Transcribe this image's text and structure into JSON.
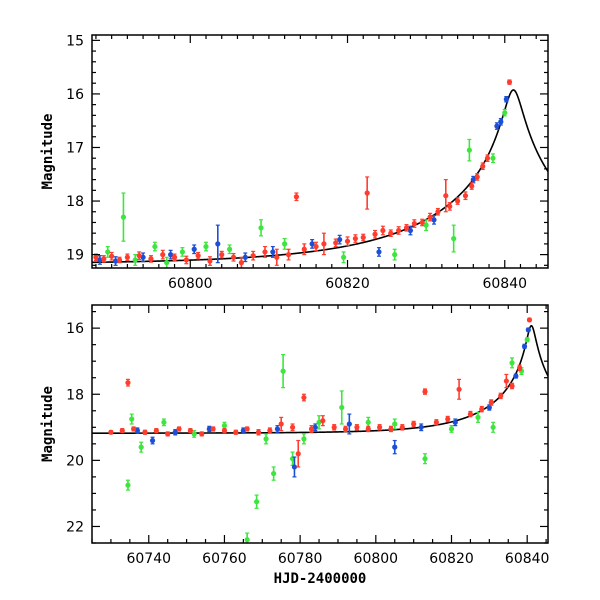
{
  "chart_data": [
    {
      "type": "scatter",
      "panel": "top",
      "ylabel": "Magnitude",
      "xlabel": "",
      "xlim": [
        60787.5,
        60845.5
      ],
      "ylim": [
        19.25,
        14.9
      ],
      "y_inverted": true,
      "xticks_major": [
        60800,
        60820,
        60840
      ],
      "yticks_major": [
        15,
        16,
        17,
        18,
        19
      ],
      "grid": false,
      "legend": "none",
      "series": [
        {
          "color": "#ff3d2e",
          "points": [
            {
              "x": 60788.0,
              "y": 19.05,
              "e": 0.06
            },
            {
              "x": 60789.0,
              "y": 19.08,
              "e": 0.06
            },
            {
              "x": 60790.0,
              "y": 19.03,
              "e": 0.07
            },
            {
              "x": 60791.0,
              "y": 19.1,
              "e": 0.05
            },
            {
              "x": 60792.0,
              "y": 19.05,
              "e": 0.06
            },
            {
              "x": 60793.5,
              "y": 19.02,
              "e": 0.07
            },
            {
              "x": 60795.0,
              "y": 19.08,
              "e": 0.06
            },
            {
              "x": 60796.5,
              "y": 19.0,
              "e": 0.08
            },
            {
              "x": 60798.0,
              "y": 19.05,
              "e": 0.06
            },
            {
              "x": 60799.5,
              "y": 19.1,
              "e": 0.07
            },
            {
              "x": 60801.0,
              "y": 19.02,
              "e": 0.06
            },
            {
              "x": 60802.5,
              "y": 19.12,
              "e": 0.08
            },
            {
              "x": 60804.0,
              "y": 19.0,
              "e": 0.06
            },
            {
              "x": 60805.5,
              "y": 19.05,
              "e": 0.07
            },
            {
              "x": 60806.5,
              "y": 19.15,
              "e": 0.1
            },
            {
              "x": 60808.0,
              "y": 19.02,
              "e": 0.08
            },
            {
              "x": 60809.5,
              "y": 18.95,
              "e": 0.1
            },
            {
              "x": 60811.0,
              "y": 19.05,
              "e": 0.15
            },
            {
              "x": 60812.5,
              "y": 19.0,
              "e": 0.1
            },
            {
              "x": 60813.5,
              "y": 17.92,
              "e": 0.07
            },
            {
              "x": 60814.5,
              "y": 18.9,
              "e": 0.1
            },
            {
              "x": 60816.0,
              "y": 18.85,
              "e": 0.08
            },
            {
              "x": 60817.0,
              "y": 18.8,
              "e": 0.2
            },
            {
              "x": 60818.5,
              "y": 18.78,
              "e": 0.07
            },
            {
              "x": 60820.0,
              "y": 18.75,
              "e": 0.08
            },
            {
              "x": 60821.0,
              "y": 18.7,
              "e": 0.07
            },
            {
              "x": 60822.0,
              "y": 18.68,
              "e": 0.06
            },
            {
              "x": 60822.5,
              "y": 17.85,
              "e": 0.3
            },
            {
              "x": 60823.5,
              "y": 18.62,
              "e": 0.07
            },
            {
              "x": 60824.5,
              "y": 18.55,
              "e": 0.08
            },
            {
              "x": 60825.5,
              "y": 18.6,
              "e": 0.06
            },
            {
              "x": 60826.5,
              "y": 18.55,
              "e": 0.07
            },
            {
              "x": 60827.5,
              "y": 18.5,
              "e": 0.06
            },
            {
              "x": 60828.5,
              "y": 18.42,
              "e": 0.07
            },
            {
              "x": 60829.5,
              "y": 18.4,
              "e": 0.06
            },
            {
              "x": 60830.5,
              "y": 18.3,
              "e": 0.07
            },
            {
              "x": 60831.5,
              "y": 18.2,
              "e": 0.06
            },
            {
              "x": 60832.5,
              "y": 17.9,
              "e": 0.3
            },
            {
              "x": 60833.0,
              "y": 18.1,
              "e": 0.07
            },
            {
              "x": 60834.0,
              "y": 18.0,
              "e": 0.06
            },
            {
              "x": 60835.0,
              "y": 17.9,
              "e": 0.07
            },
            {
              "x": 60835.8,
              "y": 17.72,
              "e": 0.06
            },
            {
              "x": 60836.5,
              "y": 17.55,
              "e": 0.06
            },
            {
              "x": 60837.2,
              "y": 17.35,
              "e": 0.06
            },
            {
              "x": 60837.8,
              "y": 17.2,
              "e": 0.06
            },
            {
              "x": 60840.6,
              "y": 15.78,
              "e": 0.04
            }
          ]
        },
        {
          "color": "#1a4fd6",
          "points": [
            {
              "x": 60788.5,
              "y": 19.1,
              "e": 0.08
            },
            {
              "x": 60790.5,
              "y": 19.12,
              "e": 0.08
            },
            {
              "x": 60794.0,
              "y": 19.05,
              "e": 0.08
            },
            {
              "x": 60797.5,
              "y": 19.0,
              "e": 0.08
            },
            {
              "x": 60800.5,
              "y": 18.9,
              "e": 0.08
            },
            {
              "x": 60803.5,
              "y": 18.8,
              "e": 0.35
            },
            {
              "x": 60807.0,
              "y": 19.05,
              "e": 0.08
            },
            {
              "x": 60810.5,
              "y": 18.95,
              "e": 0.1
            },
            {
              "x": 60815.5,
              "y": 18.8,
              "e": 0.08
            },
            {
              "x": 60819.0,
              "y": 18.72,
              "e": 0.08
            },
            {
              "x": 60824.0,
              "y": 18.95,
              "e": 0.08
            },
            {
              "x": 60828.0,
              "y": 18.55,
              "e": 0.08
            },
            {
              "x": 60831.0,
              "y": 18.35,
              "e": 0.08
            },
            {
              "x": 60836.0,
              "y": 17.6,
              "e": 0.06
            },
            {
              "x": 60839.0,
              "y": 16.6,
              "e": 0.06
            },
            {
              "x": 60839.5,
              "y": 16.52,
              "e": 0.06
            },
            {
              "x": 60840.2,
              "y": 16.1,
              "e": 0.05
            }
          ]
        },
        {
          "color": "#3ce63c",
          "points": [
            {
              "x": 60789.5,
              "y": 18.95,
              "e": 0.1
            },
            {
              "x": 60791.5,
              "y": 18.3,
              "e": 0.45
            },
            {
              "x": 60793.0,
              "y": 19.1,
              "e": 0.1
            },
            {
              "x": 60795.5,
              "y": 18.85,
              "e": 0.08
            },
            {
              "x": 60797.0,
              "y": 19.15,
              "e": 0.1
            },
            {
              "x": 60799.0,
              "y": 18.95,
              "e": 0.08
            },
            {
              "x": 60802.0,
              "y": 18.85,
              "e": 0.08
            },
            {
              "x": 60805.0,
              "y": 18.9,
              "e": 0.08
            },
            {
              "x": 60809.0,
              "y": 18.5,
              "e": 0.15
            },
            {
              "x": 60812.0,
              "y": 18.8,
              "e": 0.1
            },
            {
              "x": 60819.5,
              "y": 19.05,
              "e": 0.1
            },
            {
              "x": 60826.0,
              "y": 19.0,
              "e": 0.1
            },
            {
              "x": 60830.0,
              "y": 18.45,
              "e": 0.1
            },
            {
              "x": 60833.5,
              "y": 18.7,
              "e": 0.25
            },
            {
              "x": 60835.5,
              "y": 17.05,
              "e": 0.2
            },
            {
              "x": 60838.5,
              "y": 17.2,
              "e": 0.08
            },
            {
              "x": 60840.0,
              "y": 16.35,
              "e": 0.06
            }
          ]
        }
      ]
    },
    {
      "type": "scatter",
      "panel": "bottom",
      "ylabel": "Magnitude",
      "xlabel": "HJD-2400000",
      "xlim": [
        60725,
        60845.5
      ],
      "ylim": [
        22.5,
        15.3
      ],
      "y_inverted": true,
      "xticks_major": [
        60740,
        60760,
        60780,
        60800,
        60820,
        60840
      ],
      "yticks_major": [
        16,
        18,
        20,
        22
      ],
      "grid": false,
      "legend": "none",
      "series": [
        {
          "color": "#ff3d2e",
          "points": [
            {
              "x": 60730.0,
              "y": 19.15,
              "e": 0.05
            },
            {
              "x": 60733.0,
              "y": 19.1,
              "e": 0.06
            },
            {
              "x": 60734.5,
              "y": 17.65,
              "e": 0.1
            },
            {
              "x": 60736.0,
              "y": 19.05,
              "e": 0.06
            },
            {
              "x": 60739.0,
              "y": 19.15,
              "e": 0.06
            },
            {
              "x": 60742.0,
              "y": 19.1,
              "e": 0.06
            },
            {
              "x": 60745.0,
              "y": 19.2,
              "e": 0.06
            },
            {
              "x": 60748.0,
              "y": 19.05,
              "e": 0.06
            },
            {
              "x": 60751.0,
              "y": 19.1,
              "e": 0.06
            },
            {
              "x": 60754.0,
              "y": 19.2,
              "e": 0.06
            },
            {
              "x": 60757.0,
              "y": 19.05,
              "e": 0.06
            },
            {
              "x": 60760.0,
              "y": 19.1,
              "e": 0.06
            },
            {
              "x": 60763.0,
              "y": 19.15,
              "e": 0.06
            },
            {
              "x": 60766.0,
              "y": 19.05,
              "e": 0.06
            },
            {
              "x": 60769.0,
              "y": 19.15,
              "e": 0.08
            },
            {
              "x": 60772.0,
              "y": 19.1,
              "e": 0.08
            },
            {
              "x": 60775.0,
              "y": 18.9,
              "e": 0.2
            },
            {
              "x": 60778.0,
              "y": 19.0,
              "e": 0.1
            },
            {
              "x": 60779.5,
              "y": 19.8,
              "e": 0.4
            },
            {
              "x": 60781.0,
              "y": 18.1,
              "e": 0.1
            },
            {
              "x": 60783.0,
              "y": 19.05,
              "e": 0.1
            },
            {
              "x": 60786.0,
              "y": 18.8,
              "e": 0.15
            },
            {
              "x": 60789.0,
              "y": 19.0,
              "e": 0.08
            },
            {
              "x": 60792.0,
              "y": 19.05,
              "e": 0.08
            },
            {
              "x": 60795.0,
              "y": 19.0,
              "e": 0.08
            },
            {
              "x": 60798.0,
              "y": 19.05,
              "e": 0.08
            },
            {
              "x": 60801.0,
              "y": 19.0,
              "e": 0.08
            },
            {
              "x": 60804.0,
              "y": 19.05,
              "e": 0.08
            },
            {
              "x": 60807.0,
              "y": 19.0,
              "e": 0.08
            },
            {
              "x": 60810.0,
              "y": 18.9,
              "e": 0.08
            },
            {
              "x": 60813.0,
              "y": 17.92,
              "e": 0.08
            },
            {
              "x": 60816.0,
              "y": 18.85,
              "e": 0.08
            },
            {
              "x": 60819.0,
              "y": 18.75,
              "e": 0.08
            },
            {
              "x": 60822.0,
              "y": 17.85,
              "e": 0.3
            },
            {
              "x": 60825.0,
              "y": 18.6,
              "e": 0.08
            },
            {
              "x": 60828.0,
              "y": 18.45,
              "e": 0.08
            },
            {
              "x": 60830.5,
              "y": 18.25,
              "e": 0.08
            },
            {
              "x": 60833.0,
              "y": 18.05,
              "e": 0.08
            },
            {
              "x": 60834.5,
              "y": 17.6,
              "e": 0.2
            },
            {
              "x": 60836.0,
              "y": 17.75,
              "e": 0.08
            },
            {
              "x": 60838.0,
              "y": 17.2,
              "e": 0.08
            },
            {
              "x": 60840.6,
              "y": 15.75,
              "e": 0.05
            }
          ]
        },
        {
          "color": "#1a4fd6",
          "points": [
            {
              "x": 60737.0,
              "y": 19.1,
              "e": 0.08
            },
            {
              "x": 60741.0,
              "y": 19.4,
              "e": 0.1
            },
            {
              "x": 60747.0,
              "y": 19.15,
              "e": 0.08
            },
            {
              "x": 60756.0,
              "y": 19.05,
              "e": 0.08
            },
            {
              "x": 60765.0,
              "y": 19.1,
              "e": 0.08
            },
            {
              "x": 60774.0,
              "y": 19.05,
              "e": 0.1
            },
            {
              "x": 60778.5,
              "y": 20.2,
              "e": 0.3
            },
            {
              "x": 60784.0,
              "y": 19.0,
              "e": 0.1
            },
            {
              "x": 60793.0,
              "y": 18.9,
              "e": 0.3
            },
            {
              "x": 60805.0,
              "y": 19.6,
              "e": 0.2
            },
            {
              "x": 60812.0,
              "y": 19.0,
              "e": 0.1
            },
            {
              "x": 60821.0,
              "y": 18.85,
              "e": 0.1
            },
            {
              "x": 60830.0,
              "y": 18.4,
              "e": 0.08
            },
            {
              "x": 60837.0,
              "y": 17.45,
              "e": 0.06
            },
            {
              "x": 60839.3,
              "y": 16.55,
              "e": 0.06
            },
            {
              "x": 60840.3,
              "y": 16.05,
              "e": 0.05
            }
          ]
        },
        {
          "color": "#3ce63c",
          "points": [
            {
              "x": 60734.5,
              "y": 20.75,
              "e": 0.15
            },
            {
              "x": 60735.5,
              "y": 18.75,
              "e": 0.15
            },
            {
              "x": 60738.0,
              "y": 19.6,
              "e": 0.15
            },
            {
              "x": 60744.0,
              "y": 18.85,
              "e": 0.1
            },
            {
              "x": 60752.0,
              "y": 19.2,
              "e": 0.1
            },
            {
              "x": 60760.0,
              "y": 18.95,
              "e": 0.1
            },
            {
              "x": 60766.0,
              "y": 22.4,
              "e": 0.2
            },
            {
              "x": 60768.5,
              "y": 21.25,
              "e": 0.2
            },
            {
              "x": 60771.0,
              "y": 19.35,
              "e": 0.15
            },
            {
              "x": 60773.0,
              "y": 20.4,
              "e": 0.2
            },
            {
              "x": 60775.5,
              "y": 17.3,
              "e": 0.5
            },
            {
              "x": 60778.0,
              "y": 19.95,
              "e": 0.2
            },
            {
              "x": 60781.0,
              "y": 19.35,
              "e": 0.15
            },
            {
              "x": 60785.0,
              "y": 18.85,
              "e": 0.2
            },
            {
              "x": 60791.0,
              "y": 18.4,
              "e": 0.5
            },
            {
              "x": 60798.0,
              "y": 18.85,
              "e": 0.15
            },
            {
              "x": 60805.0,
              "y": 18.9,
              "e": 0.15
            },
            {
              "x": 60813.0,
              "y": 19.95,
              "e": 0.15
            },
            {
              "x": 60820.0,
              "y": 19.05,
              "e": 0.1
            },
            {
              "x": 60827.0,
              "y": 18.7,
              "e": 0.15
            },
            {
              "x": 60831.0,
              "y": 19.0,
              "e": 0.15
            },
            {
              "x": 60836.0,
              "y": 17.05,
              "e": 0.15
            },
            {
              "x": 60838.5,
              "y": 17.3,
              "e": 0.1
            },
            {
              "x": 60840.0,
              "y": 16.35,
              "e": 0.06
            }
          ]
        }
      ]
    }
  ]
}
